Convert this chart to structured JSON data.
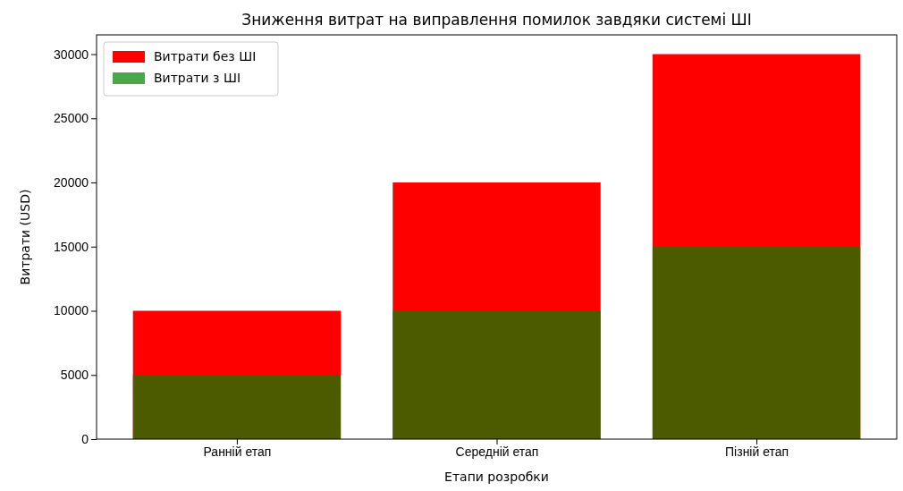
{
  "chart_data": {
    "type": "bar",
    "title": "Зниження витрат на виправлення помилок завдяки системі ШІ",
    "xlabel": "Етапи розробки",
    "ylabel": "Витрати (USD)",
    "categories": [
      "Ранній етап",
      "Середній етап",
      "Пізній етап"
    ],
    "series": [
      {
        "name": "Витрати без ШІ",
        "color": "#ff0000",
        "values": [
          10000,
          20000,
          30000
        ]
      },
      {
        "name": "Витрати з ШІ",
        "color": "#008000",
        "values": [
          5000,
          10000,
          15000
        ]
      }
    ],
    "ylim": [
      0,
      31500
    ],
    "yticks": [
      0,
      5000,
      10000,
      15000,
      20000,
      25000,
      30000
    ],
    "grid": false,
    "legend": "top left"
  }
}
